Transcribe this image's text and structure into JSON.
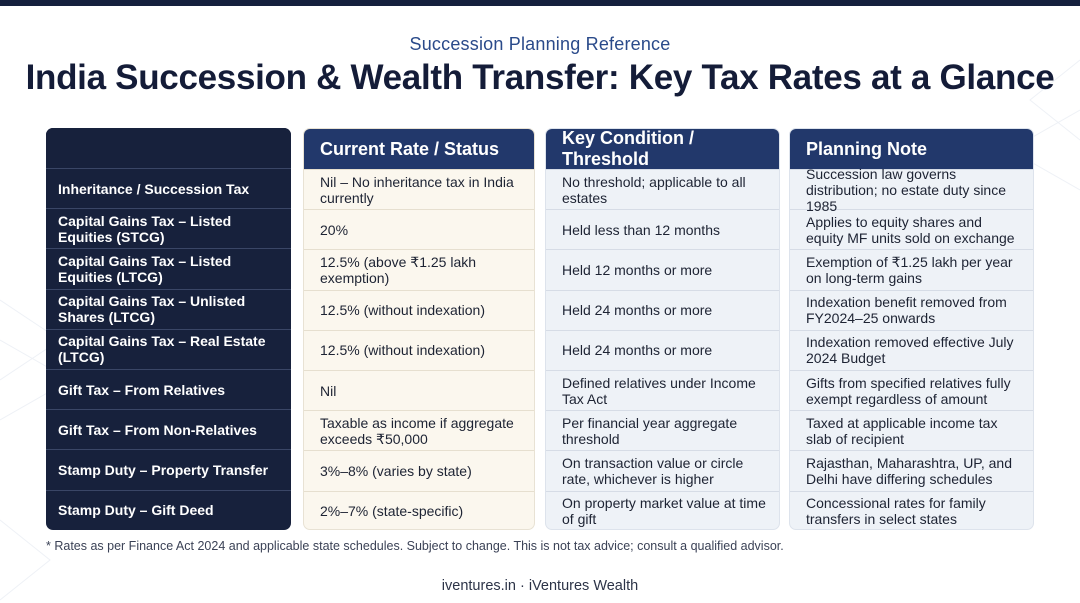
{
  "header": {
    "subtitle": "Succession Planning Reference",
    "title": "India Succession & Wealth Transfer: Key Tax Rates at a Glance"
  },
  "table": {
    "columns": [
      "",
      "Current Rate / Status",
      "Key Condition / Threshold",
      "Planning Note"
    ],
    "rows": [
      {
        "item": "Inheritance / Succession Tax",
        "rate": "Nil – No inheritance tax in India currently",
        "condition": "No threshold; applicable to all estates",
        "note": "Succession law governs distribution; no estate duty since 1985"
      },
      {
        "item": "Capital Gains Tax – Listed Equities (STCG)",
        "rate": "20%",
        "condition": "Held less than 12 months",
        "note": "Applies to equity shares and equity MF units sold on exchange"
      },
      {
        "item": "Capital Gains Tax – Listed Equities (LTCG)",
        "rate": "12.5% (above ₹1.25 lakh exemption)",
        "condition": "Held 12 months or more",
        "note": "Exemption of ₹1.25 lakh per year on long-term gains"
      },
      {
        "item": "Capital Gains Tax – Unlisted Shares (LTCG)",
        "rate": "12.5% (without indexation)",
        "condition": "Held 24 months or more",
        "note": "Indexation benefit removed from FY2024–25 onwards"
      },
      {
        "item": "Capital Gains Tax – Real Estate (LTCG)",
        "rate": "12.5% (without indexation)",
        "condition": "Held 24 months or more",
        "note": "Indexation removed effective July 2024 Budget"
      },
      {
        "item": "Gift Tax – From Relatives",
        "rate": "Nil",
        "condition": "Defined relatives under Income Tax Act",
        "note": "Gifts from specified relatives fully exempt regardless of amount"
      },
      {
        "item": "Gift Tax – From Non-Relatives",
        "rate": "Taxable as income if aggregate exceeds ₹50,000",
        "condition": "Per financial year aggregate threshold",
        "note": "Taxed at applicable income tax slab of recipient"
      },
      {
        "item": "Stamp Duty – Property Transfer",
        "rate": "3%–8% (varies by state)",
        "condition": "On transaction value or circle rate, whichever is higher",
        "note": "Rajasthan, Maharashtra, UP, and Delhi have differing schedules"
      },
      {
        "item": "Stamp Duty – Gift Deed",
        "rate": "2%–7% (state-specific)",
        "condition": "On property market value at time of gift",
        "note": "Concessional rates for family transfers in select states"
      }
    ]
  },
  "footnote": "* Rates as per Finance Act 2024 and applicable state schedules. Subject to change. This is not tax advice; consult a qualified advisor.",
  "footer": "iventures.in · iVentures Wealth"
}
